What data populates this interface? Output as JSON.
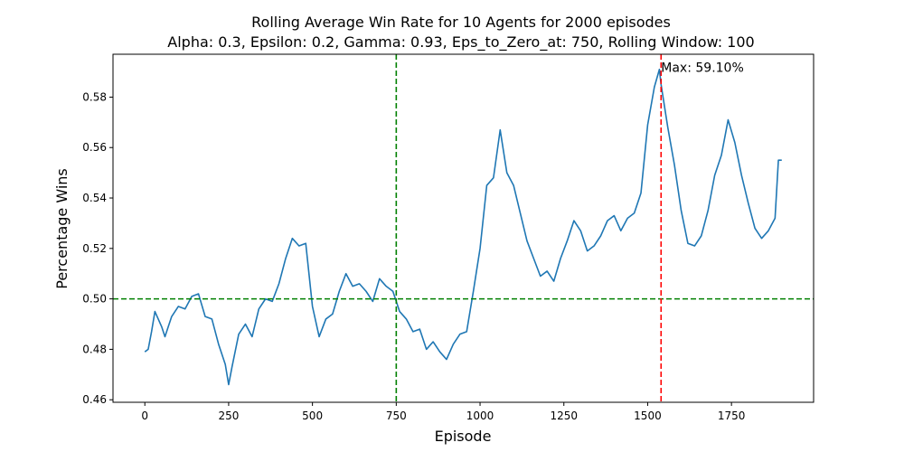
{
  "chart_data": {
    "type": "line",
    "title_line1": "Rolling Average Win Rate for 10 Agents for 2000 episodes",
    "title_line2": "Alpha: 0.3, Epsilon: 0.2, Gamma: 0.93, Eps_to_Zero_at: 750, Rolling Window: 100",
    "xlabel": "Episode",
    "ylabel": "Percentage Wins",
    "xlim": [
      -95,
      1995
    ],
    "ylim": [
      0.459,
      0.597
    ],
    "xticks": [
      0,
      250,
      500,
      750,
      1000,
      1250,
      1500,
      1750
    ],
    "xtick_labels": [
      "0",
      "250",
      "500",
      "750",
      "1000",
      "1250",
      "1500",
      "1750"
    ],
    "yticks": [
      0.46,
      0.48,
      0.5,
      0.52,
      0.54,
      0.56,
      0.58
    ],
    "ytick_labels": [
      "0.46",
      "0.48",
      "0.50",
      "0.52",
      "0.54",
      "0.56",
      "0.58"
    ],
    "grid": false,
    "series": [
      {
        "color": "#1f77b4",
        "x": [
          0,
          10,
          20,
          30,
          40,
          50,
          60,
          70,
          80,
          100,
          120,
          140,
          160,
          180,
          200,
          220,
          240,
          250,
          260,
          280,
          300,
          320,
          340,
          360,
          380,
          400,
          420,
          440,
          460,
          480,
          500,
          520,
          540,
          560,
          580,
          600,
          620,
          640,
          660,
          680,
          700,
          720,
          740,
          760,
          780,
          800,
          820,
          840,
          860,
          880,
          900,
          920,
          940,
          960,
          980,
          1000,
          1020,
          1040,
          1060,
          1080,
          1100,
          1120,
          1140,
          1160,
          1180,
          1200,
          1220,
          1240,
          1260,
          1280,
          1300,
          1320,
          1340,
          1360,
          1380,
          1400,
          1420,
          1440,
          1460,
          1480,
          1500,
          1520,
          1535,
          1540,
          1560,
          1580,
          1600,
          1620,
          1640,
          1660,
          1680,
          1700,
          1720,
          1740,
          1760,
          1780,
          1800,
          1820,
          1840,
          1860,
          1880,
          1890,
          1900
        ],
        "y": [
          0.479,
          0.48,
          0.487,
          0.495,
          0.492,
          0.489,
          0.485,
          0.489,
          0.493,
          0.497,
          0.496,
          0.501,
          0.502,
          0.493,
          0.492,
          0.482,
          0.474,
          0.466,
          0.473,
          0.486,
          0.49,
          0.485,
          0.496,
          0.5,
          0.499,
          0.506,
          0.516,
          0.524,
          0.521,
          0.522,
          0.497,
          0.485,
          0.492,
          0.494,
          0.503,
          0.51,
          0.505,
          0.506,
          0.503,
          0.499,
          0.508,
          0.505,
          0.503,
          0.495,
          0.492,
          0.487,
          0.488,
          0.48,
          0.483,
          0.479,
          0.476,
          0.482,
          0.486,
          0.487,
          0.503,
          0.52,
          0.545,
          0.548,
          0.567,
          0.55,
          0.545,
          0.534,
          0.523,
          0.516,
          0.509,
          0.511,
          0.507,
          0.516,
          0.523,
          0.531,
          0.527,
          0.519,
          0.521,
          0.525,
          0.531,
          0.533,
          0.527,
          0.532,
          0.534,
          0.542,
          0.569,
          0.584,
          0.591,
          0.585,
          0.568,
          0.553,
          0.535,
          0.522,
          0.521,
          0.525,
          0.535,
          0.549,
          0.557,
          0.571,
          0.562,
          0.549,
          0.538,
          0.528,
          0.524,
          0.527,
          0.532,
          0.555,
          0.555
        ]
      }
    ],
    "hlines": [
      {
        "y": 0.5,
        "color": "#008000",
        "style": "dashed"
      }
    ],
    "vlines": [
      {
        "x": 750,
        "color": "#008000",
        "style": "dashed"
      },
      {
        "x": 1540,
        "color": "#ff0000",
        "style": "dashed"
      }
    ],
    "annotations": [
      {
        "text": "Max: 59.10%",
        "x": 1540,
        "y": 0.591
      }
    ]
  }
}
